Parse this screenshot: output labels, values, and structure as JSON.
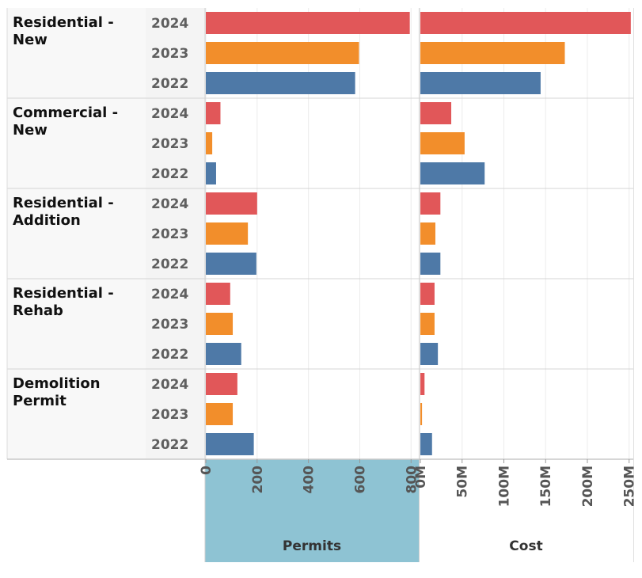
{
  "chart_data": {
    "type": "bar",
    "orientation": "horizontal",
    "categories": [
      "Residential - New",
      "Commercial - New",
      "Residential - Addition",
      "Residential - Rehab",
      "Demolition Permit"
    ],
    "category_lines": [
      [
        "Residential -",
        "New"
      ],
      [
        "Commercial -",
        "New"
      ],
      [
        "Residential -",
        "Addition"
      ],
      [
        "Residential -",
        "Rehab"
      ],
      [
        "Demolition",
        "Permit"
      ]
    ],
    "years": [
      "2024",
      "2023",
      "2022"
    ],
    "year_colors": {
      "2024": "#e15759",
      "2023": "#f28e2b",
      "2022": "#4e79a7"
    },
    "panels": [
      {
        "title": "Permits",
        "xlim": [
          0,
          830
        ],
        "ticks": [
          0,
          200,
          400,
          600,
          800
        ],
        "tick_labels": [
          "0",
          "200",
          "400",
          "600",
          "800"
        ],
        "highlighted": true,
        "highlight_color": "#8ec3d3",
        "values": [
          [
            795,
            597,
            582
          ],
          [
            57,
            25,
            40
          ],
          [
            200,
            164,
            197
          ],
          [
            95,
            105,
            138
          ],
          [
            123,
            105,
            187
          ]
        ]
      },
      {
        "title": "Cost",
        "xlim": [
          0,
          255000000
        ],
        "ticks": [
          0,
          50000000,
          100000000,
          150000000,
          200000000,
          250000000
        ],
        "tick_labels": [
          "0M",
          "50M",
          "100M",
          "150M",
          "200M",
          "250M"
        ],
        "highlighted": false,
        "values": [
          [
            252000000,
            173000000,
            144000000
          ],
          [
            37000000,
            53000000,
            77000000
          ],
          [
            24000000,
            18000000,
            24000000
          ],
          [
            17000000,
            17000000,
            21000000
          ],
          [
            5000000,
            2000000,
            14000000
          ]
        ]
      }
    ],
    "legend": "none",
    "grid": true
  }
}
